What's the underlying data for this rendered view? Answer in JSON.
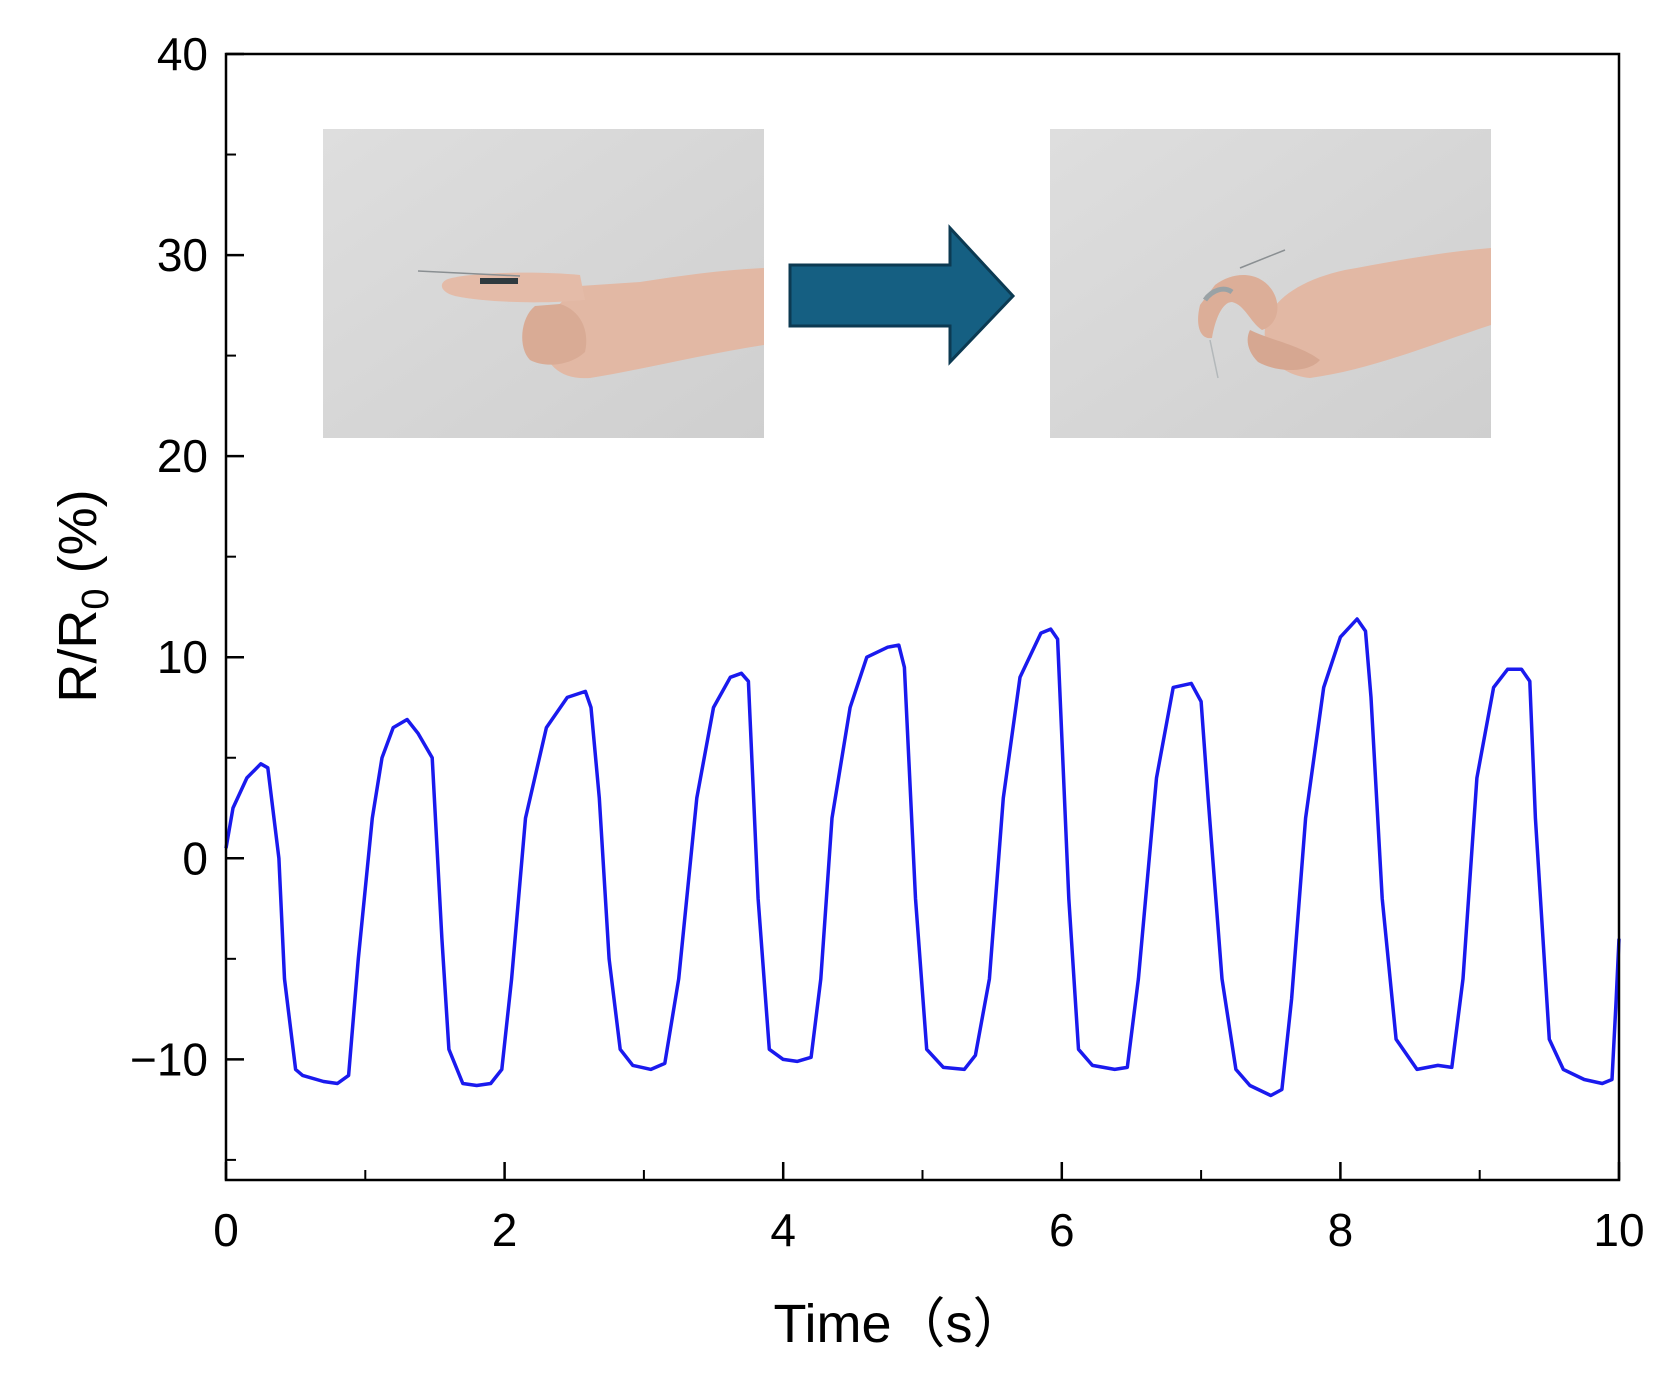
{
  "chart_data": {
    "type": "line",
    "xlabel": "Time（s）",
    "ylabel": {
      "main": "R/R",
      "sub": "0",
      "unit": " (%)"
    },
    "xlim": [
      0,
      10
    ],
    "ylim": [
      -16,
      40
    ],
    "xticks": [
      0,
      2,
      4,
      6,
      8,
      10
    ],
    "xticks_minor": [
      1,
      3,
      5,
      7,
      9
    ],
    "yticks": [
      -10,
      0,
      10,
      20,
      30,
      40
    ],
    "yticks_minor": [
      -15,
      -5,
      5,
      15,
      25,
      35
    ],
    "grid": false,
    "legend": "none",
    "series": [
      {
        "color": "#1a1aee",
        "x": [
          0,
          0.05,
          0.15,
          0.25,
          0.3,
          0.38,
          0.42,
          0.5,
          0.55,
          0.7,
          0.8,
          0.88,
          0.95,
          1.05,
          1.12,
          1.2,
          1.3,
          1.38,
          1.48,
          1.55,
          1.6,
          1.7,
          1.8,
          1.9,
          1.98,
          2.05,
          2.15,
          2.3,
          2.45,
          2.58,
          2.62,
          2.68,
          2.75,
          2.83,
          2.92,
          3.05,
          3.15,
          3.25,
          3.38,
          3.5,
          3.62,
          3.7,
          3.75,
          3.82,
          3.9,
          4.0,
          4.1,
          4.2,
          4.27,
          4.35,
          4.48,
          4.6,
          4.75,
          4.83,
          4.87,
          4.95,
          5.03,
          5.15,
          5.3,
          5.38,
          5.48,
          5.58,
          5.7,
          5.85,
          5.92,
          5.97,
          6.05,
          6.12,
          6.22,
          6.38,
          6.47,
          6.55,
          6.68,
          6.8,
          6.93,
          7.0,
          7.05,
          7.15,
          7.25,
          7.35,
          7.5,
          7.58,
          7.65,
          7.75,
          7.88,
          8.0,
          8.12,
          8.18,
          8.22,
          8.3,
          8.4,
          8.55,
          8.7,
          8.8,
          8.88,
          8.98,
          9.1,
          9.2,
          9.3,
          9.36,
          9.4,
          9.5,
          9.6,
          9.75,
          9.88,
          9.95,
          9.98,
          10.0
        ],
        "y": [
          0.5,
          2.5,
          4.0,
          4.7,
          4.5,
          0,
          -6,
          -10.5,
          -10.8,
          -11.1,
          -11.2,
          -10.8,
          -5,
          2,
          5,
          6.5,
          6.9,
          6.2,
          5.0,
          -4,
          -9.5,
          -11.2,
          -11.3,
          -11.2,
          -10.5,
          -6,
          2,
          6.5,
          8.0,
          8.3,
          7.5,
          3,
          -5,
          -9.5,
          -10.3,
          -10.5,
          -10.2,
          -6,
          3,
          7.5,
          9.0,
          9.2,
          8.8,
          -2,
          -9.5,
          -10.0,
          -10.1,
          -9.9,
          -6,
          2,
          7.5,
          10.0,
          10.5,
          10.6,
          9.5,
          -2,
          -9.5,
          -10.4,
          -10.5,
          -9.8,
          -6,
          3,
          9.0,
          11.2,
          11.4,
          10.9,
          -2,
          -9.5,
          -10.3,
          -10.5,
          -10.4,
          -6,
          4,
          8.5,
          8.7,
          7.8,
          3,
          -6,
          -10.5,
          -11.3,
          -11.8,
          -11.5,
          -7,
          2,
          8.5,
          11.0,
          11.9,
          11.3,
          8,
          -2,
          -9,
          -10.5,
          -10.3,
          -10.4,
          -6,
          4,
          8.5,
          9.4,
          9.4,
          8.8,
          2,
          -9,
          -10.5,
          -11.0,
          -11.2,
          -11.0,
          -7,
          -4
        ]
      }
    ]
  }
}
